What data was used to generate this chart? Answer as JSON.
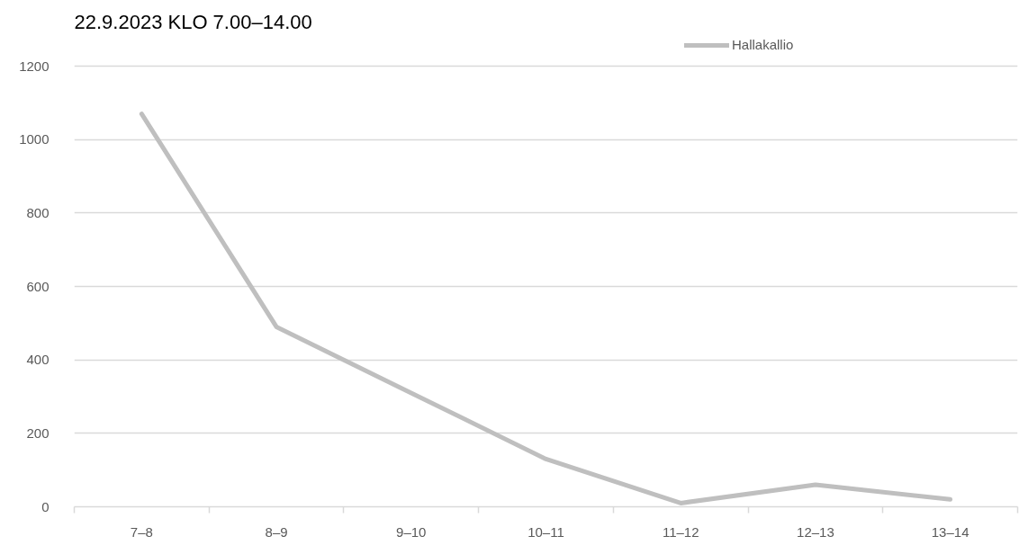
{
  "chart_data": {
    "type": "line",
    "title": "22.9.2023 KLO 7.00–14.00",
    "categories": [
      "7–8",
      "8–9",
      "9–10",
      "10–11",
      "11–12",
      "12–13",
      "13–14"
    ],
    "series": [
      {
        "name": "Hallakallio",
        "color": "#bfbfbf",
        "values": [
          1070,
          490,
          310,
          130,
          10,
          60,
          20
        ]
      }
    ],
    "ylim": [
      0,
      1200
    ],
    "yticks": [
      0,
      200,
      400,
      600,
      800,
      1000,
      1200
    ],
    "grid": "y",
    "legend": "top right"
  }
}
